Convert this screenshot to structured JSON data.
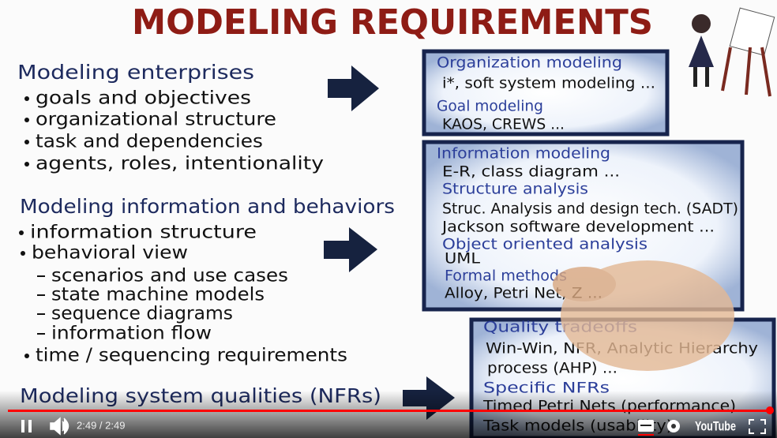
{
  "title": "MODELING REQUIREMENTS",
  "sections": [
    {
      "heading": "Modeling enterprises",
      "items": [
        "goals and objectives",
        "organizational structure",
        "task and dependencies",
        "agents, roles, intentionality"
      ]
    },
    {
      "heading": "Modeling information and behaviors",
      "items": [
        "information structure",
        "behavioral view",
        "scenarios and use cases",
        "state machine models",
        "sequence diagrams",
        "information flow",
        "time / sequencing requirements"
      ]
    },
    {
      "heading": "Modeling system qualities (NFRs)",
      "items": []
    }
  ],
  "boxes": [
    {
      "lines": [
        "Organization modeling",
        "i*, soft system modeling ...",
        "Goal modeling",
        "KAOS, CREWS ..."
      ]
    },
    {
      "lines": [
        "Information modeling",
        "E-R, class diagram ...",
        "Structure analysis",
        "Struc. Analysis and design tech. (SADT)",
        "Jackson software development ...",
        "Object oriented analysis",
        "UML",
        "Formal methods",
        "Alloy, Petri Net, Z ..."
      ]
    },
    {
      "lines": [
        "Quality tradeoffs",
        "Win-Win, NFR, Analytic Hierarchy",
        "process (AHP) ...",
        "Specific NFRs",
        "Timed Petri Nets (performance)",
        "Task models (usability)"
      ]
    }
  ],
  "player": {
    "time": "2:49 / 2:49",
    "logo": "YouTube"
  }
}
